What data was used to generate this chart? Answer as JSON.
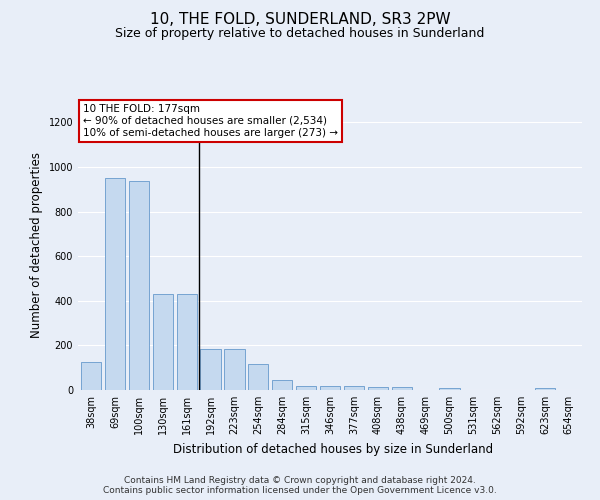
{
  "title": "10, THE FOLD, SUNDERLAND, SR3 2PW",
  "subtitle": "Size of property relative to detached houses in Sunderland",
  "xlabel": "Distribution of detached houses by size in Sunderland",
  "ylabel": "Number of detached properties",
  "categories": [
    "38sqm",
    "69sqm",
    "100sqm",
    "130sqm",
    "161sqm",
    "192sqm",
    "223sqm",
    "254sqm",
    "284sqm",
    "315sqm",
    "346sqm",
    "377sqm",
    "408sqm",
    "438sqm",
    "469sqm",
    "500sqm",
    "531sqm",
    "562sqm",
    "592sqm",
    "623sqm",
    "654sqm"
  ],
  "values": [
    125,
    950,
    935,
    430,
    430,
    185,
    185,
    115,
    45,
    20,
    20,
    20,
    15,
    15,
    0,
    10,
    0,
    0,
    0,
    10,
    0
  ],
  "bar_color": "#c5d9ef",
  "bar_edge_color": "#6699cc",
  "ylim": [
    0,
    1300
  ],
  "yticks": [
    0,
    200,
    400,
    600,
    800,
    1000,
    1200
  ],
  "annotation_text": "10 THE FOLD: 177sqm\n← 90% of detached houses are smaller (2,534)\n10% of semi-detached houses are larger (273) →",
  "annotation_box_color": "#ffffff",
  "annotation_box_edge_color": "#cc0000",
  "footer_line1": "Contains HM Land Registry data © Crown copyright and database right 2024.",
  "footer_line2": "Contains public sector information licensed under the Open Government Licence v3.0.",
  "background_color": "#e8eef8",
  "grid_color": "#ffffff",
  "title_fontsize": 11,
  "subtitle_fontsize": 9,
  "axis_label_fontsize": 8.5,
  "tick_fontsize": 7,
  "annotation_fontsize": 7.5,
  "footer_fontsize": 6.5,
  "vline_x": 4.5
}
